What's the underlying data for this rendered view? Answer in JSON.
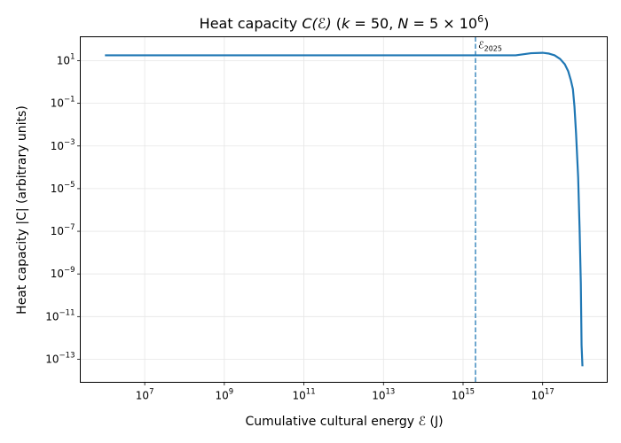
{
  "chart_data": {
    "type": "line",
    "title_parts": [
      "Heat capacity ",
      "C(ℰ)",
      "  (",
      "k",
      " = 50,  ",
      "N",
      " = 5 × 10",
      "6",
      ")"
    ],
    "xlabel_parts": [
      "Cumulative cultural energy ",
      "ℰ",
      " (J)"
    ],
    "ylabel": "Heat capacity |C| (arbitrary units)",
    "xscale": "log",
    "yscale": "log",
    "xlim": [
      240000.0,
      4.2e+18
    ],
    "ylim": [
      8.3e-15,
      132
    ],
    "grid": true,
    "x_ticks": [
      {
        "value": 10000000.0,
        "base": "10",
        "exp": "7"
      },
      {
        "value": 1000000000.0,
        "base": "10",
        "exp": "9"
      },
      {
        "value": 100000000000.0,
        "base": "10",
        "exp": "11"
      },
      {
        "value": 10000000000000.0,
        "base": "10",
        "exp": "13"
      },
      {
        "value": 1000000000000000.0,
        "base": "10",
        "exp": "15"
      },
      {
        "value": 1e+17,
        "base": "10",
        "exp": "17"
      }
    ],
    "y_ticks": [
      {
        "value": 10.0,
        "base": "10",
        "exp": "1"
      },
      {
        "value": 0.1,
        "base": "10",
        "exp": "−1"
      },
      {
        "value": 0.001,
        "base": "10",
        "exp": "−3"
      },
      {
        "value": 1e-05,
        "base": "10",
        "exp": "−5"
      },
      {
        "value": 1e-07,
        "base": "10",
        "exp": "−7"
      },
      {
        "value": 1e-09,
        "base": "10",
        "exp": "−9"
      },
      {
        "value": 1e-11,
        "base": "10",
        "exp": "−11"
      },
      {
        "value": 1e-13,
        "base": "10",
        "exp": "−13"
      }
    ],
    "series": [
      {
        "name": "C(E)",
        "color": "#1f77b4",
        "x": [
          1000000.0,
          1000000000.0,
          1000000000000.0,
          1000000000000000.0,
          2.1e+16,
          5.1e+16,
          1e+17,
          1.45e+17,
          2e+17,
          2.75e+17,
          3.6e+17,
          4.4e+17,
          5.1e+17,
          5.75e+17,
          6.3e+17,
          6.9e+17,
          7.8e+17,
          8.5e+17,
          9.1e+17,
          9.5e+17,
          1e+18
        ],
        "y": [
          17.8,
          17.8,
          17.8,
          17.8,
          17.8,
          22.4,
          23.4,
          21.4,
          17.8,
          12.0,
          6.8,
          3.16,
          1.23,
          0.47,
          0.071,
          0.004,
          3.4e-05,
          1.1e-07,
          3.6e-10,
          4.6e-13,
          4.7e-14
        ]
      }
    ],
    "annotations": [
      {
        "type": "vline",
        "x": 2050000000000000.0,
        "style": "dashed",
        "color": "#1f77b4",
        "label_base": "ℰ",
        "label_sub": "2025"
      }
    ]
  }
}
